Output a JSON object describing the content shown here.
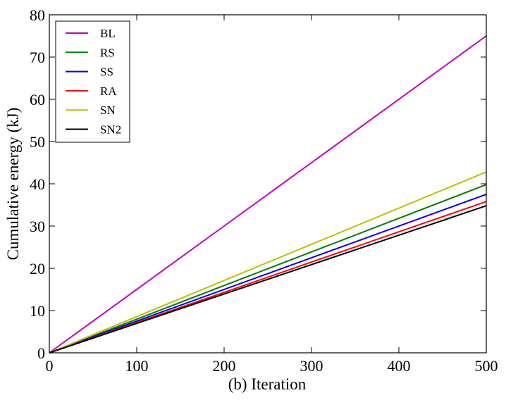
{
  "chart_data": {
    "type": "line",
    "xlabel": "(b) Iteration",
    "ylabel": "Cumulative energy (kJ)",
    "xlim": [
      0,
      500
    ],
    "ylim": [
      0,
      80
    ],
    "xticks": [
      0,
      100,
      200,
      300,
      400,
      500
    ],
    "yticks": [
      0,
      10,
      20,
      30,
      40,
      50,
      60,
      70,
      80
    ],
    "grid": false,
    "legend_position": "top-left",
    "x": [
      0,
      500
    ],
    "series": [
      {
        "name": "BL",
        "color": "#bf00bf",
        "values": [
          0,
          75.0
        ]
      },
      {
        "name": "RS",
        "color": "#008000",
        "values": [
          0,
          39.8
        ]
      },
      {
        "name": "SS",
        "color": "#0000ff",
        "values": [
          0,
          37.5
        ]
      },
      {
        "name": "RA",
        "color": "#ff0000",
        "values": [
          0,
          35.8
        ]
      },
      {
        "name": "SN",
        "color": "#bfbf00",
        "values": [
          0,
          42.8
        ]
      },
      {
        "name": "SN2",
        "color": "#000000",
        "values": [
          0,
          34.8
        ]
      }
    ]
  }
}
